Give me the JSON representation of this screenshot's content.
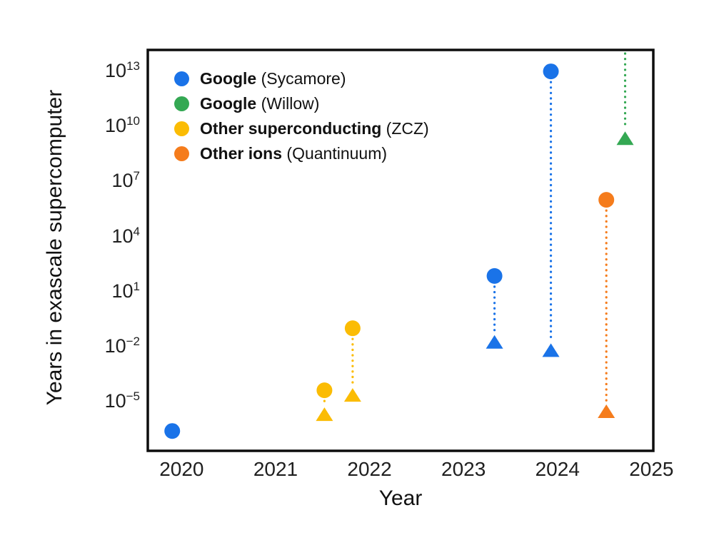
{
  "chart_data": {
    "type": "scatter",
    "title": "",
    "xlabel": "Year",
    "ylabel": "Years in exascale supercomputer",
    "x_ticks": [
      2020,
      2021,
      2022,
      2023,
      2024,
      2025
    ],
    "xlim": [
      2019.64,
      2025.02
    ],
    "y_scale": "log10",
    "y_tick_exponents": [
      -5,
      -2,
      1,
      4,
      7,
      10,
      13
    ],
    "ylim_exponents": [
      -7.68,
      14.17
    ],
    "grid": false,
    "legend_position": "upper-left-inside",
    "marker_styles": {
      "circle": "filled circle",
      "triangle": "filled upward triangle",
      "connector": "dotted vertical line between circle and triangle"
    },
    "series": [
      {
        "name": "Google (Sycamore)",
        "label_bold": "Google",
        "label_rest": "(Sycamore)",
        "color": "#1a73e8",
        "points": [
          {
            "x": 2019.9,
            "circle_exp10": -6.6
          },
          {
            "x": 2023.33,
            "circle_exp10": 1.85,
            "triangle_exp10": -1.8
          },
          {
            "x": 2023.93,
            "circle_exp10": 13.0,
            "triangle_exp10": -2.25
          }
        ]
      },
      {
        "name": "Google (Willow)",
        "label_bold": "Google",
        "label_rest": "(Willow)",
        "color": "#34a853",
        "points": [
          {
            "x": 2024.72,
            "triangle_exp10": 9.3,
            "line_extends_above_top": true
          }
        ]
      },
      {
        "name": "Other superconducting (ZCZ)",
        "label_bold": "Other superconducting",
        "label_rest": "(ZCZ)",
        "color": "#fbbc04",
        "points": [
          {
            "x": 2021.52,
            "circle_exp10": -4.38,
            "triangle_exp10": -5.74
          },
          {
            "x": 2021.82,
            "circle_exp10": -1.0,
            "triangle_exp10": -4.69
          }
        ]
      },
      {
        "name": "Other ions (Quantinuum)",
        "label_bold": "Other ions",
        "label_rest": "(Quantinuum)",
        "color": "#f57c1c",
        "points": [
          {
            "x": 2024.52,
            "circle_exp10": 6.0,
            "triangle_exp10": -5.58
          }
        ]
      }
    ]
  }
}
